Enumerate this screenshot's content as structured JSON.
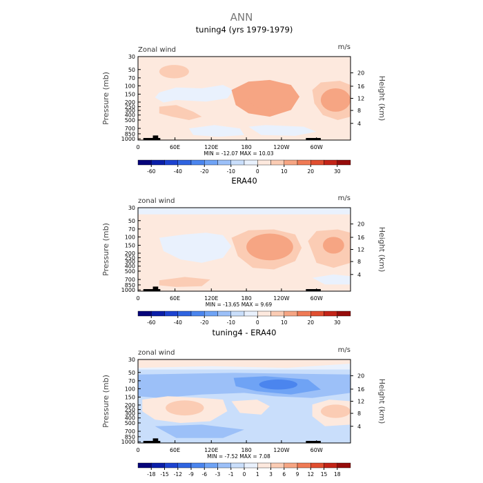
{
  "figure": {
    "title": "ANN"
  },
  "chart_data": [
    {
      "type": "heatmap",
      "title": "tuning4 (yrs 1979-1979)",
      "variable_label": "Zonal wind",
      "units": "m/s",
      "ylabel": "Pressure (mb)",
      "ylabel_right": "Height (km)",
      "xticks": [
        "0",
        "60E",
        "120E",
        "180",
        "120W",
        "60W"
      ],
      "yticks": [
        "30",
        "50",
        "70",
        "100",
        "150",
        "200",
        "250",
        "300",
        "400",
        "500",
        "700",
        "850",
        "1000"
      ],
      "yticks_right": [
        "20",
        "16",
        "12",
        "8",
        "4"
      ],
      "stats": "MIN = -12.07   MAX = 10.03",
      "min": -12.07,
      "max": 10.03,
      "colorbar_levels": [
        -70,
        -60,
        -50,
        -40,
        -30,
        -20,
        -15,
        -10,
        -5,
        0,
        5,
        10,
        15,
        20,
        25,
        30,
        35
      ],
      "colorbar_labels": [
        "-60",
        "-40",
        "-20",
        "-10",
        "0",
        "10",
        "20",
        "30"
      ],
      "fields": [
        {
          "name": "background",
          "value": 2
        },
        {
          "name": "upper trop band easterly",
          "value": -5
        },
        {
          "name": "dateline westerly jet",
          "value": 10
        },
        {
          "name": "dateline jet core",
          "value": 10
        },
        {
          "name": "60W westerly jet",
          "value": 5
        },
        {
          "name": "60W jet core",
          "value": 10
        },
        {
          "name": "60E mid westerly",
          "value": 5
        },
        {
          "name": "lower trop westerly",
          "value": 5
        },
        {
          "name": "lower trop easterly",
          "value": -5
        },
        {
          "name": "east pacific easterly",
          "value": -5
        }
      ]
    },
    {
      "type": "heatmap",
      "title": "ERA40",
      "variable_label": "zonal wind",
      "units": "m/s",
      "ylabel": "Pressure (mb)",
      "ylabel_right": "Height (km)",
      "xticks": [
        "0",
        "60E",
        "120E",
        "180",
        "120W",
        "60W"
      ],
      "yticks": [
        "30",
        "50",
        "70",
        "100",
        "150",
        "200",
        "250",
        "300",
        "400",
        "500",
        "700",
        "850",
        "1000"
      ],
      "yticks_right": [
        "20",
        "16",
        "12",
        "8",
        "4"
      ],
      "stats": "MIN = -13.65   MAX = 9.69",
      "min": -13.65,
      "max": 9.69,
      "colorbar_levels": [
        -70,
        -60,
        -50,
        -40,
        -30,
        -20,
        -15,
        -10,
        -5,
        0,
        5,
        10,
        15,
        20,
        25,
        30,
        35
      ],
      "colorbar_labels": [
        "-60",
        "-40",
        "-20",
        "-10",
        "0",
        "10",
        "20",
        "30"
      ],
      "fields": [
        {
          "name": "background",
          "value": 2
        },
        {
          "name": "stratospheric easterly",
          "value": -5
        },
        {
          "name": "upper trop band easterly",
          "value": -5
        },
        {
          "name": "dateline westerly jet",
          "value": 5
        },
        {
          "name": "dateline jet core",
          "value": 10
        },
        {
          "name": "60W westerly jet",
          "value": 5
        },
        {
          "name": "60W jet core",
          "value": 10
        },
        {
          "name": "lower trop westerly",
          "value": 5
        },
        {
          "name": "east pacific easterly",
          "value": -5
        }
      ]
    },
    {
      "type": "heatmap",
      "title": "tuning4 - ERA40",
      "variable_label": "zonal wind",
      "units": "m/s",
      "ylabel": "Pressure (mb)",
      "ylabel_right": "Height (km)",
      "xticks": [
        "0",
        "60E",
        "120E",
        "180",
        "120W",
        "60W"
      ],
      "yticks": [
        "30",
        "50",
        "70",
        "100",
        "150",
        "200",
        "250",
        "300",
        "400",
        "500",
        "700",
        "850",
        "1000"
      ],
      "yticks_right": [
        "20",
        "16",
        "12",
        "8",
        "4"
      ],
      "stats": "MIN = -7.52   MAX = 7.08",
      "min": -7.52,
      "max": 7.08,
      "colorbar_levels": [
        -21,
        -18,
        -15,
        -12,
        -9,
        -6,
        -3,
        -1,
        0,
        1,
        3,
        6,
        9,
        12,
        15,
        18,
        21
      ],
      "colorbar_labels": [
        "-18",
        "-15",
        "-12",
        "-9",
        "-6",
        "-3",
        "-1",
        "0",
        "1",
        "3",
        "6",
        "9",
        "12",
        "15",
        "18"
      ],
      "fields": [
        {
          "name": "background",
          "value": -0.5
        },
        {
          "name": "top layer positive",
          "value": 0.5
        },
        {
          "name": "top layer stronger",
          "value": 2
        },
        {
          "name": "upper easterly band",
          "value": -2
        },
        {
          "name": "upper easterly core",
          "value": -4.5
        },
        {
          "name": "upper easterly deep core",
          "value": -7
        },
        {
          "name": "mid westerly 60E",
          "value": 2
        },
        {
          "name": "mid westerly 60E core",
          "value": 4.5
        },
        {
          "name": "mid westerly dateline",
          "value": 2
        },
        {
          "name": "mid westerly 60W",
          "value": 2
        },
        {
          "name": "mid westerly 60W core",
          "value": 4.5
        },
        {
          "name": "lower easterly",
          "value": -2
        }
      ]
    }
  ]
}
